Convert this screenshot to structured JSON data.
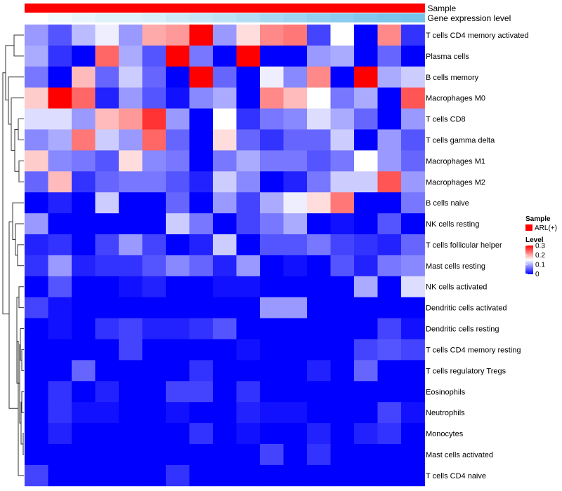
{
  "chart_data": {
    "type": "heatmap",
    "color_scale": {
      "low": "#0000ff",
      "mid": "#ffffff",
      "high": "#ff0000",
      "min": 0,
      "mid_value": 0.15,
      "max": 0.3
    },
    "rows": [
      "T cells CD4 memory activated",
      "Plasma cells",
      "B cells memory",
      "Macrophages M0",
      "T cells CD8",
      "T cells gamma delta",
      "Macrophages M1",
      "Macrophages M2",
      "B cells naive",
      "NK cells resting",
      "T cells follicular helper",
      "Mast cells resting",
      "NK cells activated",
      "Dendritic cells activated",
      "Dendritic cells resting",
      "T cells CD4 memory resting",
      "T cells regulatory  Tregs",
      "Eosinophils",
      "Neutrophils",
      "Monocytes",
      "Mast cells activated",
      "T cells CD4 naive"
    ],
    "values": [
      [
        0.09,
        0.05,
        0.11,
        0.14,
        0.09,
        0.2,
        0.21,
        0.3,
        0.09,
        0.17,
        0.22,
        0.23,
        0.04,
        0.15,
        0.0,
        0.22,
        0.03
      ],
      [
        0.1,
        0.03,
        0.0,
        0.24,
        0.1,
        0.05,
        0.3,
        0.07,
        0.0,
        0.3,
        0.0,
        0.0,
        0.09,
        0.1,
        0.0,
        0.06,
        0.0
      ],
      [
        0.07,
        0.0,
        0.19,
        0.06,
        0.12,
        0.06,
        0.0,
        0.3,
        0.06,
        0.0,
        0.14,
        0.08,
        0.22,
        0.0,
        0.3,
        0.1,
        0.12
      ],
      [
        0.18,
        0.3,
        0.24,
        0.02,
        0.09,
        0.05,
        0.01,
        0.08,
        0.1,
        0.0,
        0.22,
        0.19,
        0.15,
        0.07,
        0.1,
        0.0,
        0.25
      ],
      [
        0.13,
        0.13,
        0.09,
        0.19,
        0.21,
        0.27,
        0.09,
        0.0,
        0.15,
        0.03,
        0.07,
        0.08,
        0.13,
        0.1,
        0.06,
        0.0,
        0.09
      ],
      [
        0.08,
        0.1,
        0.23,
        0.12,
        0.09,
        0.24,
        0.06,
        0.0,
        0.17,
        0.06,
        0.03,
        0.06,
        0.06,
        0.12,
        0.0,
        0.09,
        0.05
      ],
      [
        0.18,
        0.08,
        0.07,
        0.05,
        0.17,
        0.08,
        0.07,
        0.0,
        0.07,
        0.1,
        0.07,
        0.07,
        0.05,
        0.07,
        0.15,
        0.09,
        0.06
      ],
      [
        0.06,
        0.19,
        0.03,
        0.06,
        0.07,
        0.07,
        0.05,
        0.02,
        0.12,
        0.08,
        0.0,
        0.02,
        0.07,
        0.12,
        0.12,
        0.25,
        0.09
      ],
      [
        0.0,
        0.02,
        0.0,
        0.12,
        0.0,
        0.0,
        0.06,
        0.0,
        0.09,
        0.04,
        0.1,
        0.14,
        0.17,
        0.23,
        0.0,
        0.0,
        0.07
      ],
      [
        0.09,
        0.0,
        0.0,
        0.0,
        0.0,
        0.0,
        0.12,
        0.07,
        0.0,
        0.04,
        0.07,
        0.1,
        0.0,
        0.01,
        0.0,
        0.05,
        0.0
      ],
      [
        0.02,
        0.03,
        0.0,
        0.04,
        0.09,
        0.04,
        0.0,
        0.02,
        0.12,
        0.0,
        0.05,
        0.05,
        0.07,
        0.04,
        0.03,
        0.02,
        0.06
      ],
      [
        0.03,
        0.09,
        0.02,
        0.03,
        0.03,
        0.05,
        0.08,
        0.06,
        0.02,
        0.09,
        0.0,
        0.01,
        0.0,
        0.05,
        0.02,
        0.07,
        0.08
      ],
      [
        0.0,
        0.05,
        0.0,
        0.0,
        0.01,
        0.02,
        0.0,
        0.0,
        0.01,
        0.01,
        0.0,
        0.0,
        0.0,
        0.0,
        0.1,
        0.0,
        0.13
      ],
      [
        0.04,
        0.01,
        0.0,
        0.0,
        0.0,
        0.0,
        0.0,
        0.0,
        0.0,
        0.0,
        0.09,
        0.09,
        0.0,
        0.0,
        0.0,
        0.0,
        0.0
      ],
      [
        0.0,
        0.01,
        0.0,
        0.03,
        0.04,
        0.02,
        0.02,
        0.03,
        0.05,
        0.0,
        0.0,
        0.0,
        0.0,
        0.0,
        0.0,
        0.04,
        0.01
      ],
      [
        0.0,
        0.0,
        0.0,
        0.0,
        0.04,
        0.0,
        0.0,
        0.0,
        0.0,
        0.01,
        0.0,
        0.0,
        0.0,
        0.0,
        0.04,
        0.05,
        0.04
      ],
      [
        0.0,
        0.0,
        0.06,
        0.0,
        0.0,
        0.0,
        0.0,
        0.03,
        0.0,
        0.0,
        0.0,
        0.0,
        0.02,
        0.0,
        0.06,
        0.0,
        0.0
      ],
      [
        0.0,
        0.03,
        0.0,
        0.02,
        0.0,
        0.0,
        0.04,
        0.04,
        0.0,
        0.03,
        0.0,
        0.0,
        0.0,
        0.0,
        0.0,
        0.0,
        0.0
      ],
      [
        0.0,
        0.03,
        0.01,
        0.01,
        0.0,
        0.0,
        0.01,
        0.0,
        0.0,
        0.02,
        0.01,
        0.01,
        0.0,
        0.0,
        0.0,
        0.04,
        0.01
      ],
      [
        0.0,
        0.02,
        0.0,
        0.0,
        0.0,
        0.0,
        0.0,
        0.03,
        0.0,
        0.01,
        0.0,
        0.0,
        0.02,
        0.0,
        0.02,
        0.03,
        0.0
      ],
      [
        0.0,
        0.0,
        0.0,
        0.0,
        0.0,
        0.0,
        0.0,
        0.0,
        0.0,
        0.0,
        0.04,
        0.0,
        0.03,
        0.0,
        0.0,
        0.0,
        0.0
      ],
      [
        0.04,
        0.0,
        0.0,
        0.0,
        0.0,
        0.0,
        0.03,
        0.0,
        0.0,
        0.0,
        0.0,
        0.0,
        0.0,
        0.0,
        0.0,
        0.0,
        0.0
      ]
    ],
    "annotations": [
      {
        "label": "Sample",
        "colors": [
          "#ff0000",
          "#ff0000",
          "#ff0000",
          "#ff0000",
          "#ff0000",
          "#ff0000",
          "#ff0000",
          "#ff0000",
          "#ff0000",
          "#ff0000",
          "#ff0000",
          "#ff0000",
          "#ff0000",
          "#ff0000",
          "#ff0000",
          "#ff0000",
          "#ff0000"
        ]
      },
      {
        "label": "Gene expression level",
        "colors": [
          "#ffffff",
          "#f2f9fd",
          "#e8f5fc",
          "#dff1fb",
          "#dff1fb",
          "#d8eefa",
          "#cde9f8",
          "#c5e6f7",
          "#bce2f6",
          "#b2ddf5",
          "#a7d8f3",
          "#9dd4f2",
          "#92cff0",
          "#8acbef",
          "#82c8ee",
          "#7bc5ed",
          "#75c3ec"
        ]
      }
    ],
    "legend": {
      "sample_title": "Sample",
      "sample_item": "ARL(+)",
      "sample_color": "#ff0000",
      "level_title": "Level",
      "level_ticks": [
        "0.3",
        "0.2",
        "0.1",
        "0"
      ],
      "placement": "right"
    }
  }
}
